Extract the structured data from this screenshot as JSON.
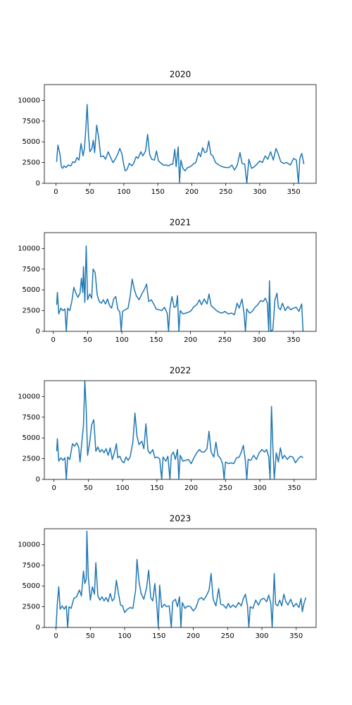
{
  "chart_data": [
    {
      "type": "line",
      "title": "2020",
      "color": "#1f77b4",
      "xlim": [
        -17,
        383
      ],
      "ylim": [
        0,
        11900
      ],
      "xticks": [
        0,
        50,
        100,
        150,
        200,
        250,
        300,
        350
      ],
      "yticks": [
        0,
        2500,
        5000,
        7500,
        10000
      ],
      "x": [
        1,
        3,
        6,
        8,
        10,
        12,
        15,
        18,
        22,
        25,
        28,
        31,
        34,
        37,
        40,
        42,
        44,
        46,
        48,
        50,
        53,
        55,
        57,
        60,
        63,
        66,
        70,
        73,
        77,
        80,
        84,
        88,
        91,
        94,
        97,
        100,
        102,
        105,
        108,
        112,
        115,
        118,
        121,
        125,
        128,
        132,
        135,
        138,
        141,
        145,
        148,
        151,
        155,
        158,
        162,
        166,
        169,
        172,
        175,
        177,
        180,
        182,
        184,
        187,
        190,
        194,
        198,
        202,
        206,
        210,
        213,
        216,
        219,
        222,
        225,
        228,
        231,
        235,
        240,
        245,
        250,
        255,
        259,
        263,
        267,
        271,
        274,
        278,
        281,
        284,
        288,
        292,
        296,
        300,
        304,
        308,
        312,
        316,
        320,
        324,
        327,
        331,
        335,
        340,
        345,
        350,
        354,
        357,
        359,
        362,
        365
      ],
      "values": [
        2600,
        4600,
        3500,
        2000,
        1800,
        2100,
        1900,
        2200,
        2100,
        2600,
        2500,
        3100,
        2800,
        4800,
        3300,
        4200,
        6500,
        9500,
        5800,
        3800,
        4200,
        5200,
        3700,
        7000,
        5500,
        3200,
        3300,
        2900,
        3800,
        3200,
        2500,
        3000,
        3500,
        4200,
        3600,
        2200,
        1500,
        1700,
        2400,
        2100,
        2500,
        3200,
        3000,
        3800,
        3300,
        3900,
        5900,
        3500,
        2900,
        2800,
        3900,
        2700,
        2400,
        2200,
        2200,
        2100,
        2300,
        2300,
        4100,
        2000,
        4400,
        100,
        2800,
        1800,
        1500,
        1900,
        2000,
        2300,
        2500,
        3700,
        3200,
        4300,
        3700,
        3800,
        5100,
        3500,
        3300,
        2500,
        2200,
        2000,
        1900,
        1900,
        2200,
        1600,
        2200,
        3700,
        2400,
        2300,
        0,
        2900,
        1800,
        2000,
        2300,
        2700,
        2500,
        3300,
        2900,
        3800,
        2800,
        4200,
        3600,
        2600,
        2400,
        2500,
        2200,
        3000,
        2800,
        0,
        3000,
        3600,
        2300
      ]
    },
    {
      "type": "line",
      "title": "2021",
      "color": "#1f77b4",
      "xlim": [
        -13,
        383
      ],
      "ylim": [
        0,
        11900
      ],
      "xticks": [
        0,
        50,
        100,
        150,
        200,
        250,
        300,
        350
      ],
      "yticks": [
        0,
        2500,
        5000,
        7500,
        10000
      ],
      "x": [
        5,
        6,
        8,
        11,
        14,
        17,
        19,
        21,
        24,
        27,
        30,
        33,
        36,
        39,
        41,
        43,
        44,
        46,
        48,
        50,
        53,
        56,
        58,
        61,
        64,
        67,
        70,
        73,
        76,
        79,
        82,
        85,
        88,
        91,
        94,
        97,
        99,
        101,
        105,
        109,
        112,
        115,
        118,
        121,
        125,
        129,
        133,
        136,
        139,
        143,
        147,
        150,
        154,
        158,
        162,
        166,
        168,
        170,
        173,
        176,
        179,
        181,
        183,
        185,
        189,
        193,
        197,
        201,
        205,
        209,
        213,
        216,
        220,
        224,
        227,
        230,
        234,
        238,
        242,
        246,
        250,
        255,
        260,
        264,
        268,
        271,
        275,
        278,
        280,
        282,
        286,
        290,
        294,
        298,
        302,
        306,
        309,
        312,
        314,
        315,
        317,
        320,
        323,
        326,
        328,
        331,
        334,
        338,
        342,
        346,
        350,
        354,
        358,
        362,
        364
      ],
      "values": [
        3200,
        4700,
        2100,
        2800,
        2500,
        2700,
        0,
        2800,
        2500,
        3600,
        5300,
        4600,
        4100,
        4600,
        6400,
        4700,
        7800,
        3500,
        10300,
        3800,
        4500,
        4000,
        7500,
        7100,
        4400,
        3600,
        3400,
        3800,
        3300,
        3900,
        3100,
        2800,
        3900,
        4200,
        2700,
        2300,
        0,
        2400,
        2600,
        2800,
        4200,
        6300,
        5100,
        4300,
        3800,
        4500,
        5100,
        5700,
        3600,
        3800,
        3200,
        2700,
        2600,
        2500,
        2900,
        2200,
        0,
        2800,
        4200,
        2900,
        3000,
        4300,
        0,
        2500,
        2100,
        2200,
        2300,
        2500,
        3000,
        3200,
        3800,
        3200,
        3900,
        3300,
        4500,
        3100,
        2800,
        2500,
        2300,
        2200,
        2400,
        2100,
        2200,
        2000,
        3400,
        2800,
        3900,
        2200,
        0,
        2700,
        2200,
        2400,
        2900,
        3200,
        3700,
        3600,
        4000,
        3400,
        0,
        6100,
        0,
        200,
        3800,
        4600,
        2900,
        2600,
        3400,
        2500,
        3000,
        2600,
        2800,
        2900,
        2400,
        3300,
        0
      ]
    },
    {
      "type": "line",
      "title": "2022",
      "color": "#1f77b4",
      "xlim": [
        -14,
        382
      ],
      "ylim": [
        0,
        11900
      ],
      "xticks": [
        0,
        50,
        100,
        150,
        200,
        250,
        300,
        350
      ],
      "yticks": [
        0,
        2500,
        5000,
        7500,
        10000
      ],
      "x": [
        4,
        5,
        7,
        10,
        13,
        16,
        18,
        20,
        23,
        27,
        30,
        33,
        36,
        38,
        41,
        43,
        45,
        47,
        49,
        52,
        55,
        58,
        61,
        64,
        67,
        70,
        73,
        76,
        79,
        82,
        85,
        88,
        91,
        93,
        96,
        99,
        102,
        105,
        108,
        111,
        115,
        118,
        121,
        124,
        128,
        131,
        134,
        137,
        140,
        144,
        147,
        150,
        154,
        157,
        159,
        163,
        166,
        169,
        171,
        174,
        177,
        180,
        182,
        184,
        188,
        192,
        196,
        200,
        204,
        208,
        212,
        215,
        219,
        223,
        226,
        229,
        233,
        236,
        239,
        243,
        246,
        248,
        250,
        254,
        258,
        262,
        266,
        270,
        273,
        276,
        279,
        281,
        283,
        287,
        291,
        295,
        299,
        303,
        307,
        310,
        313,
        315,
        317,
        319,
        321,
        324,
        327,
        330,
        333,
        336,
        340,
        344,
        348,
        352,
        356,
        360,
        363
      ],
      "values": [
        3400,
        4900,
        2200,
        2600,
        2300,
        2600,
        0,
        2700,
        2400,
        4300,
        4000,
        4400,
        3900,
        2100,
        4800,
        6500,
        11900,
        8500,
        2900,
        4400,
        6600,
        7200,
        3400,
        3900,
        3300,
        3600,
        3200,
        3700,
        2900,
        3800,
        2400,
        3200,
        4300,
        2600,
        2800,
        2200,
        2000,
        2700,
        2300,
        2700,
        4500,
        8000,
        5200,
        4200,
        4600,
        3700,
        6700,
        3500,
        3100,
        3600,
        2600,
        2700,
        2500,
        0,
        2700,
        2200,
        2800,
        0,
        2900,
        3300,
        2400,
        3600,
        0,
        2900,
        2200,
        2300,
        2400,
        1900,
        2600,
        3200,
        3600,
        3300,
        3300,
        3700,
        5800,
        3300,
        2700,
        4500,
        2900,
        2500,
        1800,
        0,
        2100,
        1900,
        2000,
        1900,
        2600,
        2700,
        3300,
        4100,
        2200,
        0,
        2400,
        2300,
        2900,
        2400,
        3200,
        3600,
        3300,
        3600,
        2700,
        0,
        8800,
        4000,
        100,
        3200,
        2100,
        3800,
        2500,
        2900,
        2400,
        2800,
        2700,
        2000,
        2500,
        2800,
        2600
      ]
    },
    {
      "type": "line",
      "title": "2023",
      "color": "#1f77b4",
      "xlim": [
        -17,
        379
      ],
      "ylim": [
        0,
        11900
      ],
      "xticks": [
        0,
        50,
        100,
        150,
        200,
        250,
        300,
        350
      ],
      "yticks": [
        0,
        2500,
        5000,
        7500,
        10000
      ],
      "x": [
        0,
        2,
        4,
        6,
        9,
        12,
        15,
        17,
        19,
        22,
        26,
        30,
        34,
        37,
        40,
        42,
        44,
        45,
        47,
        50,
        53,
        56,
        58,
        61,
        64,
        67,
        70,
        73,
        76,
        79,
        82,
        85,
        88,
        91,
        94,
        97,
        100,
        104,
        108,
        112,
        116,
        118,
        121,
        124,
        128,
        132,
        135,
        138,
        141,
        144,
        147,
        149,
        151,
        154,
        158,
        161,
        165,
        168,
        170,
        174,
        177,
        180,
        182,
        184,
        188,
        192,
        196,
        200,
        204,
        208,
        212,
        215,
        219,
        223,
        226,
        229,
        233,
        237,
        240,
        244,
        248,
        251,
        254,
        258,
        262,
        266,
        270,
        273,
        276,
        279,
        281,
        283,
        287,
        291,
        295,
        299,
        303,
        307,
        310,
        313,
        315,
        318,
        320,
        323,
        326,
        329,
        332,
        335,
        338,
        342,
        346,
        350,
        354,
        357,
        359,
        361,
        364
      ],
      "values": [
        0,
        3000,
        4900,
        2200,
        2600,
        2200,
        2600,
        0,
        2500,
        2300,
        3500,
        3700,
        4500,
        3800,
        6800,
        5300,
        5800,
        11600,
        6200,
        3300,
        4900,
        4000,
        7800,
        3800,
        3300,
        3700,
        3200,
        3600,
        3100,
        4100,
        3200,
        3500,
        5700,
        4100,
        2700,
        2600,
        1800,
        2200,
        2400,
        2300,
        4500,
        8200,
        5500,
        4100,
        3400,
        4800,
        6900,
        3600,
        3200,
        5300,
        2600,
        0,
        5100,
        2400,
        2800,
        2500,
        2600,
        0,
        3100,
        3400,
        2500,
        3700,
        0,
        3000,
        2300,
        2600,
        2500,
        2000,
        2400,
        3400,
        3600,
        3300,
        3800,
        4500,
        6500,
        3400,
        2600,
        4700,
        2800,
        2700,
        2300,
        2900,
        2400,
        2700,
        2400,
        3000,
        2600,
        3500,
        4000,
        2600,
        0,
        2500,
        2300,
        3300,
        2700,
        3400,
        3500,
        3100,
        3900,
        2900,
        0,
        6500,
        2800,
        2600,
        3300,
        2600,
        4000,
        3100,
        2700,
        3400,
        2500,
        2900,
        2400,
        3500,
        1900,
        2800,
        3600
      ]
    }
  ]
}
